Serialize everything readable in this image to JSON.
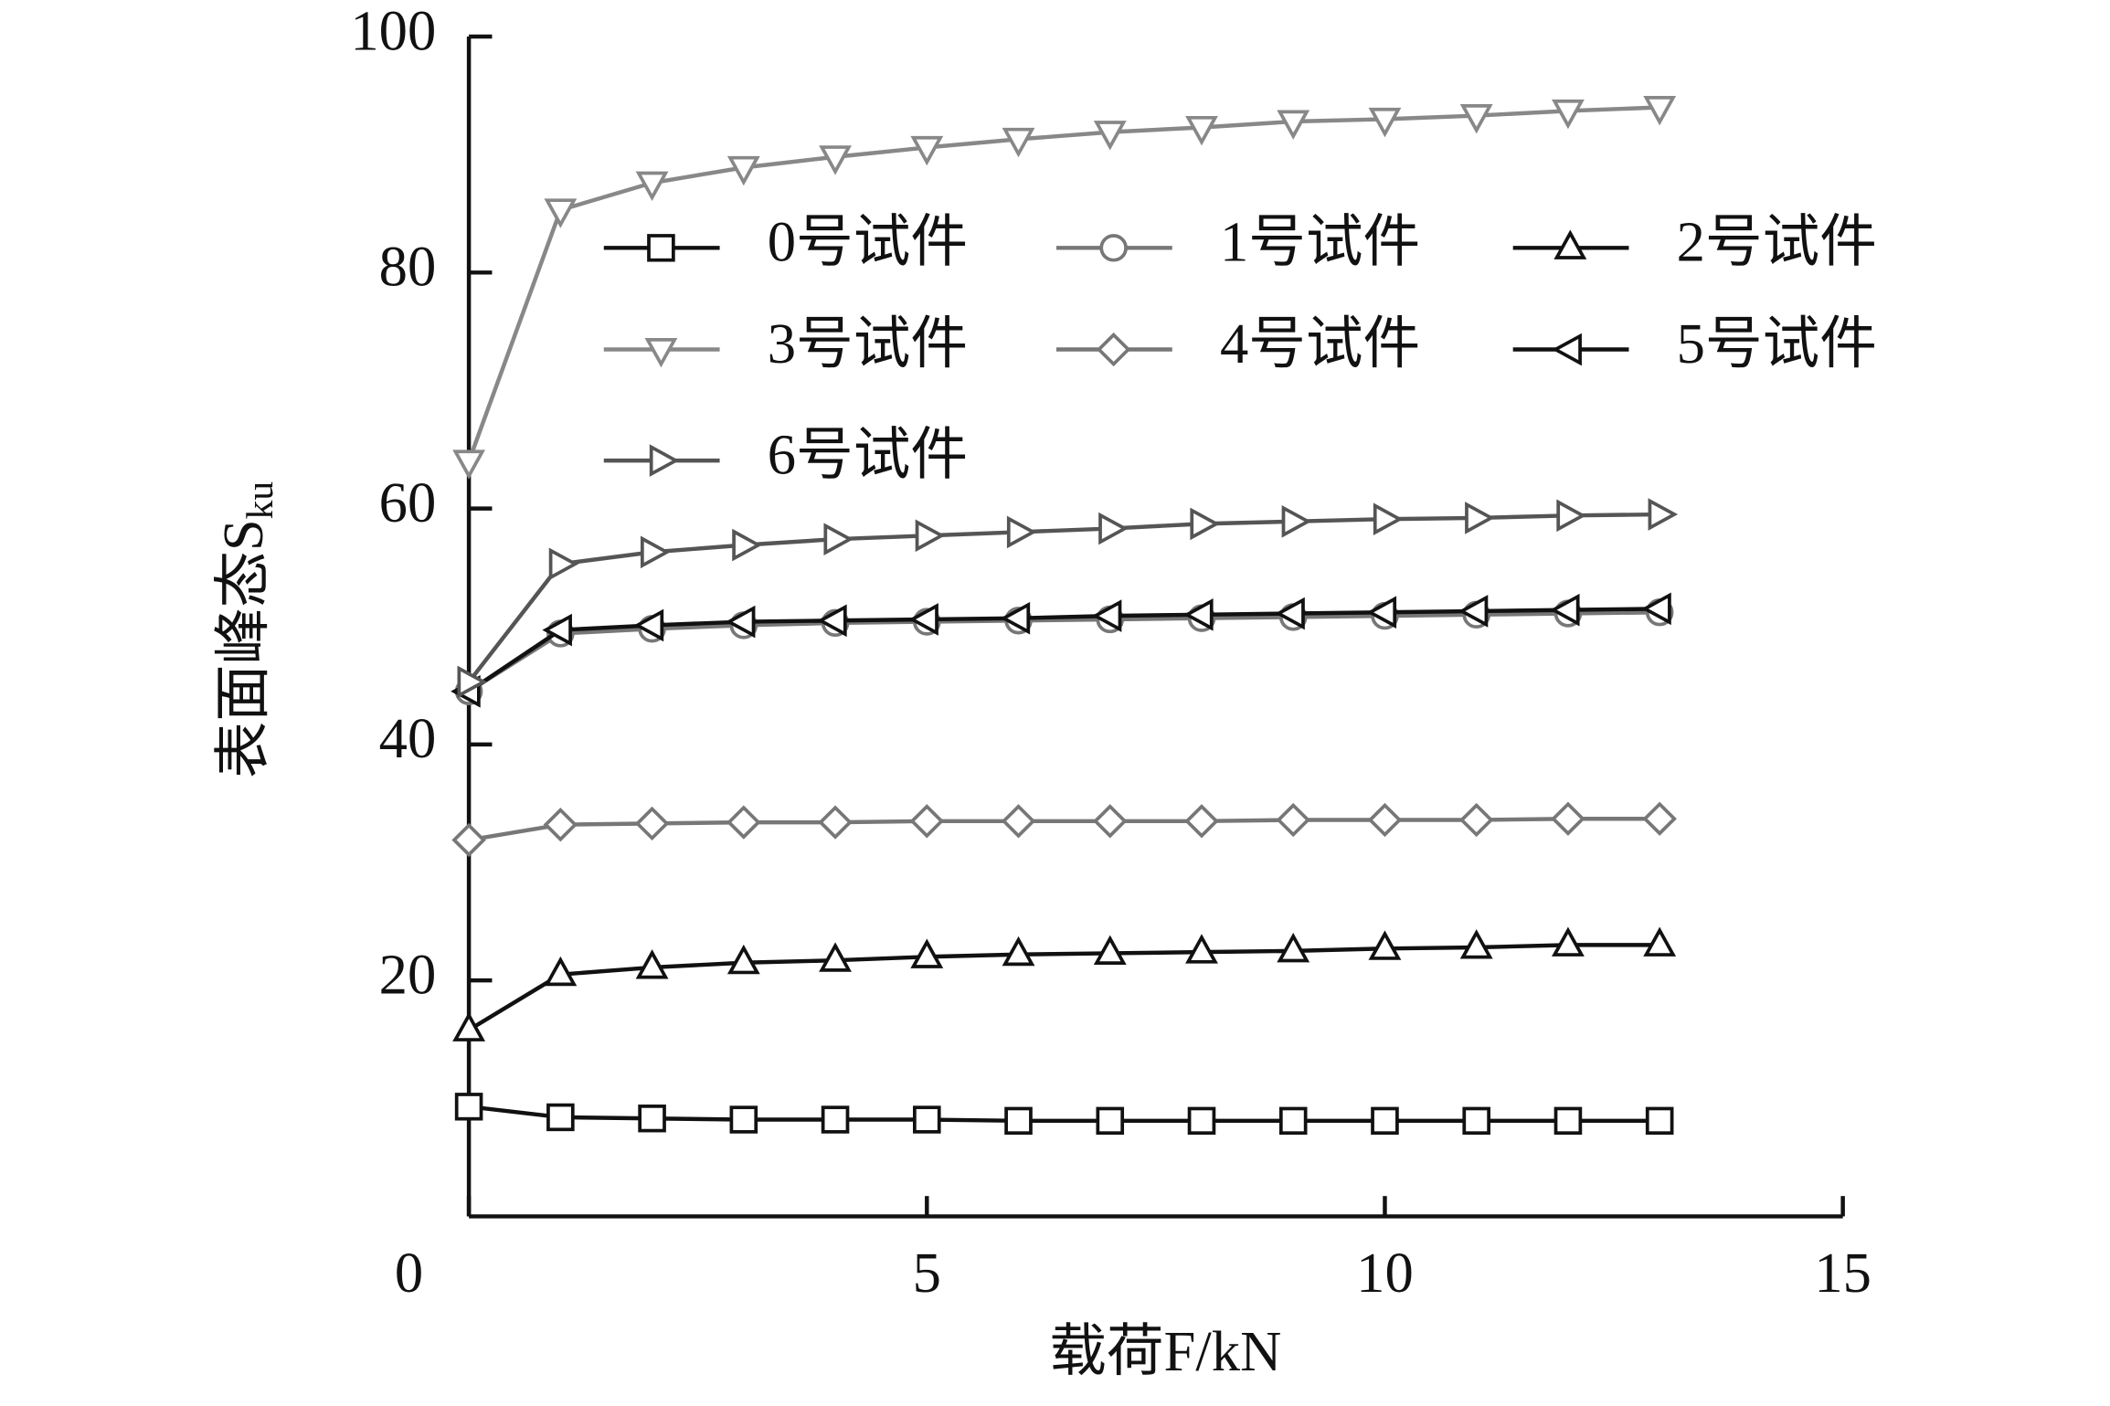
{
  "chart_data": {
    "type": "line",
    "xlabel": "载荷F/kN",
    "ylabel": "表面峰态S",
    "ylabel_subscript": "ku",
    "x": [
      0,
      1,
      2,
      3,
      4,
      5,
      6,
      7,
      8,
      9,
      10,
      11,
      12,
      13
    ],
    "xlim": [
      0,
      15
    ],
    "xticks": [
      0,
      5,
      10,
      15
    ],
    "ylim": [
      0,
      100
    ],
    "yticks": [
      20,
      40,
      60,
      80,
      100
    ],
    "legend": "upper-left",
    "series": [
      {
        "name": "0号试件",
        "color": "#111111",
        "marker": "square",
        "values": [
          9.3,
          8.4,
          8.3,
          8.2,
          8.2,
          8.2,
          8.1,
          8.1,
          8.1,
          8.1,
          8.1,
          8.1,
          8.1,
          8.1
        ]
      },
      {
        "name": "1号试件",
        "color": "#777777",
        "marker": "circle",
        "values": [
          44.5,
          49.4,
          49.8,
          50.1,
          50.3,
          50.4,
          50.5,
          50.6,
          50.7,
          50.8,
          50.9,
          51.0,
          51.1,
          51.2
        ]
      },
      {
        "name": "2号试件",
        "color": "#111111",
        "marker": "triangle-up",
        "values": [
          15.8,
          20.5,
          21.1,
          21.5,
          21.7,
          22.0,
          22.2,
          22.3,
          22.4,
          22.5,
          22.7,
          22.8,
          23.0,
          23.0
        ]
      },
      {
        "name": "3号试件",
        "color": "#888888",
        "marker": "triangle-down",
        "values": [
          64.0,
          85.3,
          87.6,
          88.9,
          89.8,
          90.6,
          91.3,
          91.9,
          92.3,
          92.8,
          93.0,
          93.3,
          93.7,
          94.0
        ]
      },
      {
        "name": "4号试件",
        "color": "#777777",
        "marker": "diamond",
        "values": [
          31.9,
          33.2,
          33.3,
          33.4,
          33.4,
          33.5,
          33.5,
          33.5,
          33.5,
          33.6,
          33.6,
          33.6,
          33.7,
          33.7
        ]
      },
      {
        "name": "5号试件",
        "color": "#111111",
        "marker": "triangle-left",
        "values": [
          44.5,
          49.7,
          50.1,
          50.4,
          50.5,
          50.6,
          50.7,
          50.9,
          51.0,
          51.1,
          51.2,
          51.3,
          51.4,
          51.5
        ]
      },
      {
        "name": "6号试件",
        "color": "#555555",
        "marker": "triangle-right",
        "values": [
          45.3,
          55.3,
          56.3,
          56.9,
          57.4,
          57.7,
          58.0,
          58.3,
          58.7,
          58.9,
          59.1,
          59.2,
          59.4,
          59.5
        ]
      }
    ]
  }
}
